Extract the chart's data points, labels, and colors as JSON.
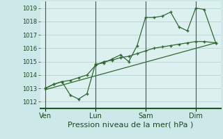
{
  "background_color": "#cce8e8",
  "plot_bg_color": "#ddf0f0",
  "grid_color": "#b0cccc",
  "line_color": "#2d6a2d",
  "marker_color": "#2d6a2d",
  "xlabel": "Pression niveau de la mer( hPa )",
  "xlabel_fontsize": 8,
  "ylim": [
    1011.5,
    1019.5
  ],
  "yticks": [
    1012,
    1013,
    1014,
    1015,
    1016,
    1017,
    1018,
    1019
  ],
  "xtick_labels": [
    "Ven",
    "Lun",
    "Sam",
    "Dim"
  ],
  "xtick_positions": [
    0,
    3,
    6,
    9
  ],
  "xlim": [
    -0.3,
    10.5
  ],
  "series1_x": [
    0,
    0.5,
    1.0,
    1.5,
    2.0,
    2.5,
    3.0,
    3.5,
    4.0,
    4.5,
    5.0,
    5.5,
    6.0,
    6.5,
    7.0,
    7.5,
    8.0,
    8.5,
    9.0,
    9.5,
    10.2
  ],
  "series1_y": [
    1013.0,
    1013.3,
    1013.5,
    1012.5,
    1012.2,
    1012.6,
    1014.8,
    1014.9,
    1015.2,
    1015.5,
    1015.0,
    1016.2,
    1018.3,
    1018.3,
    1018.4,
    1018.7,
    1017.6,
    1017.3,
    1019.0,
    1018.9,
    1016.4
  ],
  "series2_x": [
    0,
    0.5,
    1.0,
    1.5,
    2.0,
    2.5,
    3.0,
    3.5,
    4.0,
    4.5,
    5.0,
    5.5,
    6.0,
    6.5,
    7.0,
    7.5,
    8.0,
    8.5,
    9.0,
    9.5,
    10.2
  ],
  "series2_y": [
    1013.0,
    1013.3,
    1013.5,
    1013.6,
    1013.8,
    1014.0,
    1014.7,
    1015.0,
    1015.1,
    1015.3,
    1015.4,
    1015.6,
    1015.8,
    1016.0,
    1016.1,
    1016.2,
    1016.3,
    1016.4,
    1016.5,
    1016.5,
    1016.4
  ],
  "trend_x": [
    0,
    10.2
  ],
  "trend_y": [
    1012.9,
    1016.4
  ]
}
